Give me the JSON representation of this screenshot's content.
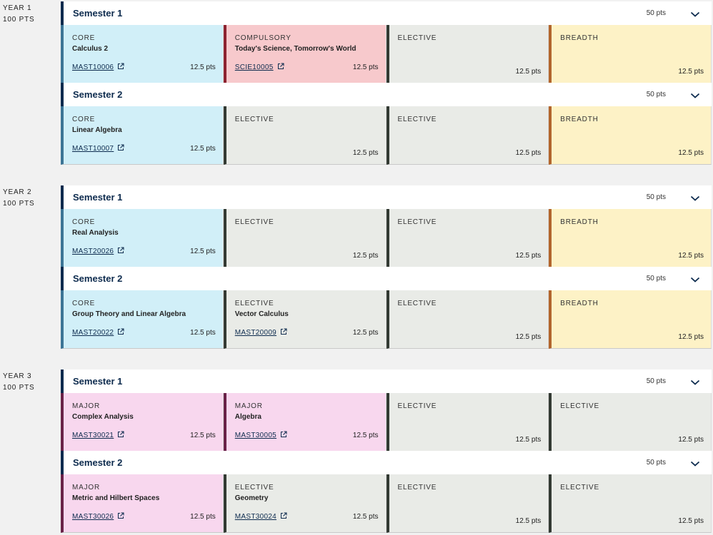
{
  "years": [
    {
      "label": "YEAR 1",
      "points": "100 PTS",
      "semesters": [
        {
          "title": "Semester 1",
          "points": "50 pts",
          "subjects": [
            {
              "kind": "core",
              "type": "CORE",
              "name": "Calculus 2",
              "code": "MAST10006",
              "points": "12.5 pts"
            },
            {
              "kind": "compulsory",
              "type": "COMPULSORY",
              "name": "Today's Science, Tomorrow's World",
              "code": "SCIE10005",
              "points": "12.5 pts"
            },
            {
              "kind": "elective",
              "type": "ELECTIVE",
              "name": "",
              "code": "",
              "points": "12.5 pts"
            },
            {
              "kind": "breadth",
              "type": "BREADTH",
              "name": "",
              "code": "",
              "points": "12.5 pts"
            }
          ]
        },
        {
          "title": "Semester 2",
          "points": "50 pts",
          "subjects": [
            {
              "kind": "core",
              "type": "CORE",
              "name": "Linear Algebra",
              "code": "MAST10007",
              "points": "12.5 pts"
            },
            {
              "kind": "elective",
              "type": "ELECTIVE",
              "name": "",
              "code": "",
              "points": "12.5 pts"
            },
            {
              "kind": "elective",
              "type": "ELECTIVE",
              "name": "",
              "code": "",
              "points": "12.5 pts"
            },
            {
              "kind": "breadth",
              "type": "BREADTH",
              "name": "",
              "code": "",
              "points": "12.5 pts"
            }
          ]
        }
      ]
    },
    {
      "label": "YEAR 2",
      "points": "100 PTS",
      "semesters": [
        {
          "title": "Semester 1",
          "points": "50 pts",
          "subjects": [
            {
              "kind": "core",
              "type": "CORE",
              "name": "Real Analysis",
              "code": "MAST20026",
              "points": "12.5 pts"
            },
            {
              "kind": "elective",
              "type": "ELECTIVE",
              "name": "",
              "code": "",
              "points": "12.5 pts"
            },
            {
              "kind": "elective",
              "type": "ELECTIVE",
              "name": "",
              "code": "",
              "points": "12.5 pts"
            },
            {
              "kind": "breadth",
              "type": "BREADTH",
              "name": "",
              "code": "",
              "points": "12.5 pts"
            }
          ]
        },
        {
          "title": "Semester 2",
          "points": "50 pts",
          "subjects": [
            {
              "kind": "core",
              "type": "CORE",
              "name": "Group Theory and Linear Algebra",
              "code": "MAST20022",
              "points": "12.5 pts"
            },
            {
              "kind": "elective",
              "type": "ELECTIVE",
              "name": "Vector Calculus",
              "code": "MAST20009",
              "points": "12.5 pts"
            },
            {
              "kind": "elective",
              "type": "ELECTIVE",
              "name": "",
              "code": "",
              "points": "12.5 pts"
            },
            {
              "kind": "breadth",
              "type": "BREADTH",
              "name": "",
              "code": "",
              "points": "12.5 pts"
            }
          ]
        }
      ]
    },
    {
      "label": "YEAR 3",
      "points": "100 PTS",
      "semesters": [
        {
          "title": "Semester 1",
          "points": "50 pts",
          "subjects": [
            {
              "kind": "major",
              "type": "MAJOR",
              "name": "Complex Analysis",
              "code": "MAST30021",
              "points": "12.5 pts"
            },
            {
              "kind": "major",
              "type": "MAJOR",
              "name": "Algebra",
              "code": "MAST30005",
              "points": "12.5 pts"
            },
            {
              "kind": "elective",
              "type": "ELECTIVE",
              "name": "",
              "code": "",
              "points": "12.5 pts"
            },
            {
              "kind": "elective",
              "type": "ELECTIVE",
              "name": "",
              "code": "",
              "points": "12.5 pts"
            }
          ]
        },
        {
          "title": "Semester 2",
          "points": "50 pts",
          "subjects": [
            {
              "kind": "major",
              "type": "MAJOR",
              "name": "Metric and Hilbert Spaces",
              "code": "MAST30026",
              "points": "12.5 pts"
            },
            {
              "kind": "elective",
              "type": "ELECTIVE",
              "name": "Geometry",
              "code": "MAST30024",
              "points": "12.5 pts"
            },
            {
              "kind": "elective",
              "type": "ELECTIVE",
              "name": "",
              "code": "",
              "points": "12.5 pts"
            },
            {
              "kind": "elective",
              "type": "ELECTIVE",
              "name": "",
              "code": "",
              "points": "12.5 pts"
            }
          ]
        }
      ]
    }
  ],
  "icons": {
    "external_link": "external-link-icon",
    "expand": "chevron-down-icon"
  },
  "colors": {
    "navy": "#0d2b4e",
    "core": "#d1eff8",
    "compulsory": "#f7c9cc",
    "elective": "#e9ebe7",
    "breadth": "#fdf2c6",
    "major": "#f8d7ee"
  }
}
